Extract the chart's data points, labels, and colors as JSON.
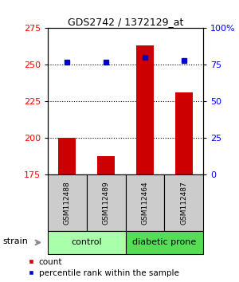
{
  "title": "GDS2742 / 1372129_at",
  "samples": [
    "GSM112488",
    "GSM112489",
    "GSM112464",
    "GSM112487"
  ],
  "count_values": [
    200,
    188,
    263,
    231
  ],
  "percentile_values": [
    77,
    77,
    80,
    78
  ],
  "ylim_left": [
    175,
    275
  ],
  "ylim_right": [
    0,
    100
  ],
  "yticks_left": [
    175,
    200,
    225,
    250,
    275
  ],
  "yticks_right": [
    0,
    25,
    50,
    75,
    100
  ],
  "bar_color": "#cc0000",
  "dot_color": "#0000cc",
  "label_count": "count",
  "label_percentile": "percentile rank within the sample",
  "strain_label": "strain",
  "group_label_1": "control",
  "group_label_2": "diabetic prone",
  "group_color_1": "#aaffaa",
  "group_color_2": "#55dd55",
  "sample_box_color": "#cccccc",
  "bar_width": 0.45
}
